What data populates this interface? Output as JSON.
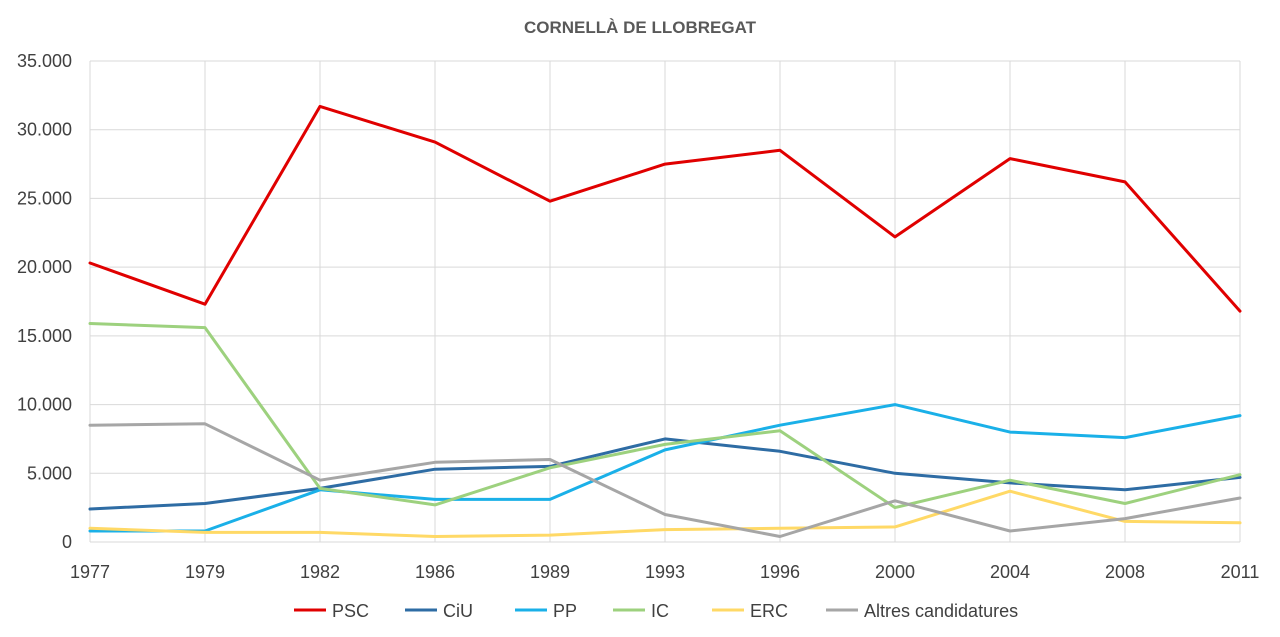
{
  "chart_data": {
    "type": "line",
    "title": "CORNELLÀ DE LLOBREGAT",
    "xlabel": "",
    "ylabel": "",
    "categories": [
      "1977",
      "1979",
      "1982",
      "1986",
      "1989",
      "1993",
      "1996",
      "2000",
      "2004",
      "2008",
      "2011"
    ],
    "ylim": [
      0,
      35000
    ],
    "yticks": [
      0,
      5000,
      10000,
      15000,
      20000,
      25000,
      30000,
      35000
    ],
    "ytick_labels": [
      "0",
      "5.000",
      "10.000",
      "15.000",
      "20.000",
      "25.000",
      "30.000",
      "35.000"
    ],
    "grid": true,
    "legend_position": "bottom",
    "series": [
      {
        "name": "PSC",
        "color": "#e00000",
        "values": [
          20300,
          17300,
          31700,
          29100,
          24800,
          27500,
          28500,
          22200,
          27900,
          26200,
          16800
        ]
      },
      {
        "name": "CiU",
        "color": "#2e6ca4",
        "values": [
          2400,
          2800,
          3900,
          5300,
          5500,
          7500,
          6600,
          5000,
          4300,
          3800,
          4700
        ]
      },
      {
        "name": "PP",
        "color": "#1ab0e8",
        "values": [
          800,
          800,
          3800,
          3100,
          3100,
          6700,
          8500,
          10000,
          8000,
          7600,
          9200
        ]
      },
      {
        "name": "IC",
        "color": "#9dd17e",
        "values": [
          15900,
          15600,
          3900,
          2700,
          5400,
          7100,
          8100,
          2500,
          4500,
          2800,
          4900
        ]
      },
      {
        "name": "ERC",
        "color": "#ffd966",
        "values": [
          1000,
          700,
          700,
          400,
          500,
          900,
          1000,
          1100,
          3700,
          1500,
          1400
        ]
      },
      {
        "name": "Altres candidatures",
        "color": "#a6a6a6",
        "values": [
          8500,
          8600,
          4500,
          5800,
          6000,
          2000,
          400,
          3000,
          800,
          1700,
          3200
        ]
      }
    ]
  }
}
